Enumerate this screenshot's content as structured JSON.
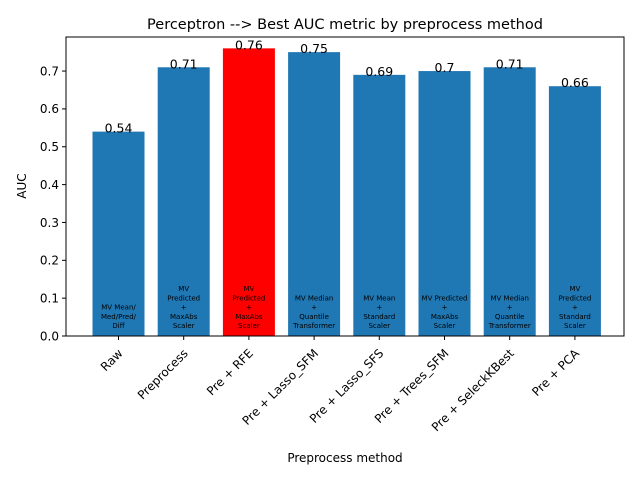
{
  "chart_data": {
    "type": "bar",
    "title": "Perceptron --> Best AUC metric by preprocess method",
    "xlabel": "Preprocess method",
    "ylabel": "AUC",
    "ylim": [
      0,
      0.79
    ],
    "yticks": [
      "0.0",
      "0.1",
      "0.2",
      "0.3",
      "0.4",
      "0.5",
      "0.6",
      "0.7"
    ],
    "grid": false,
    "categories": [
      "Raw",
      "Preprocess",
      "Pre + RFE",
      "Pre + Lasso_SFM",
      "Pre + Lasso_SFS",
      "Pre + Trees_SFM",
      "Pre + SeleckKBest",
      "Pre + PCA"
    ],
    "values": [
      0.54,
      0.71,
      0.76,
      0.75,
      0.69,
      0.7,
      0.71,
      0.66
    ],
    "value_labels": [
      "0.54",
      "0.71",
      "0.76",
      "0.75",
      "0.69",
      "0.7",
      "0.71",
      "0.66"
    ],
    "bar_annotations": [
      [
        "MV Mean/",
        "Med/Pred/",
        "Diff"
      ],
      [
        "MV",
        "Predicted",
        "+",
        "MaxAbs",
        "Scaler"
      ],
      [
        "MV",
        "Predicted",
        "+",
        "MaxAbs",
        "Scaler"
      ],
      [
        "MV Median",
        "+",
        "Quantile",
        "Transformer"
      ],
      [
        "MV Mean",
        "+",
        "Standard",
        "Scaler"
      ],
      [
        "MV Predicted",
        "+",
        "MaxAbs",
        "Scaler"
      ],
      [
        "MV Median",
        "+",
        "Quantile",
        "Transformer"
      ],
      [
        "MV",
        "Predicted",
        "+",
        "Standard",
        "Scaler"
      ]
    ],
    "colors": {
      "bar": "#1f77b4",
      "highlight": "#ff0000",
      "axis": "#000000"
    },
    "highlight_index": 2
  }
}
